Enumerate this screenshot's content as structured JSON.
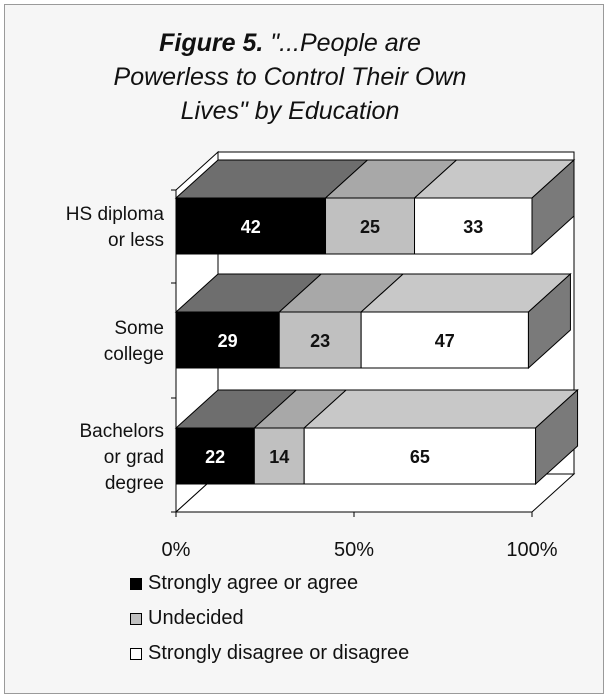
{
  "colors": {
    "strongly_agree": "#000000",
    "undecided": "#c0c0c0",
    "disagree": "#ffffff",
    "side_strongly_agree": "#5a5a5a",
    "side_undecided": "#8e8e8e",
    "top_strongly_agree": "#6e6e6e",
    "top_undecided": "#a8a8a8",
    "top_disagree": "#c8c8c8",
    "side_disagree": "#7a7a7a"
  },
  "chart_data": {
    "type": "bar",
    "orientation": "horizontal",
    "stacked": true,
    "three_d": true,
    "title_prefix": "Figure 5.",
    "title_text": "\"...People are\nPowerless to Control Their Own\nLives\" by Education",
    "categories": [
      [
        "HS diploma",
        "or less"
      ],
      [
        "Some",
        "college"
      ],
      [
        "Bachelors",
        "or grad",
        "degree"
      ]
    ],
    "series": [
      {
        "name": "Strongly agree or agree",
        "values": [
          42,
          29,
          22
        ]
      },
      {
        "name": "Undecided",
        "values": [
          25,
          23,
          14
        ]
      },
      {
        "name": "Strongly disagree or disagree",
        "values": [
          33,
          47,
          65
        ]
      }
    ],
    "x_ticks": [
      "0%",
      "50%",
      "100%"
    ],
    "xlim": [
      0,
      100
    ],
    "legend_position": "bottom",
    "grid": false
  }
}
